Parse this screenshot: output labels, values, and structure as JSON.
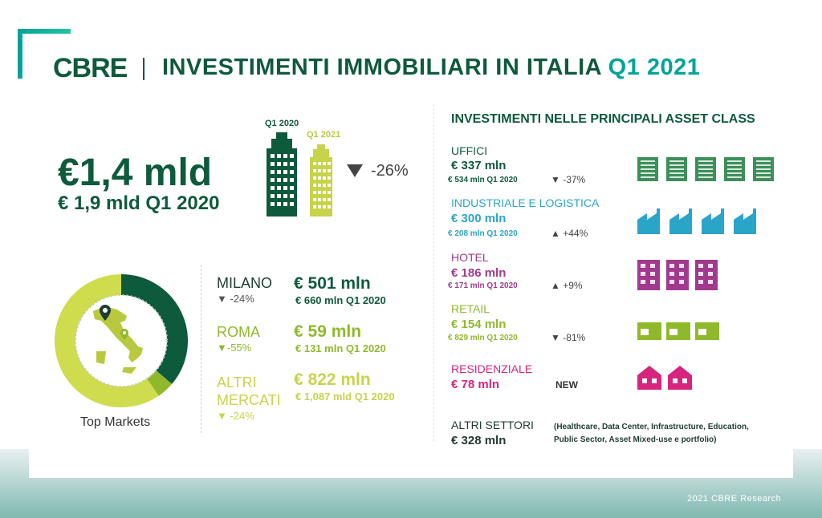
{
  "brand": {
    "logo_text": "CBRE",
    "accent": "#00a39a",
    "dark_green": "#0e5a3c",
    "lime": "#b9c93f"
  },
  "title": {
    "main": "INVESTIMENTI IMMOBILIARI IN ITALIA",
    "highlight": "Q1 2021"
  },
  "headline": {
    "value": "€1,4 mld",
    "previous": "€ 1,9 mld Q1 2020",
    "change": "-26%"
  },
  "buildings": {
    "q1_2020_label": "Q1 2020",
    "q1_2021_label": "Q1 2021"
  },
  "markets": {
    "caption": "Top Markets",
    "rows": [
      {
        "name": "MILANO",
        "change": "▼ -24%",
        "value": "€ 501 mln",
        "previous": "€ 660 mln Q1 2020"
      },
      {
        "name": "ROMA",
        "change": "▼-55%",
        "value": "€ 59 mln",
        "previous": "€ 131 mln Q1 2020"
      },
      {
        "name_line1": "ALTRI",
        "name_line2": "MERCATI",
        "change": "▼ -24%",
        "value": "€ 822 mln",
        "previous": "€ 1,087 mld Q1 2020"
      }
    ]
  },
  "asset_classes": {
    "title": "INVESTIMENTI NELLE PRINCIPALI ASSET CLASS",
    "items": [
      {
        "name": "UFFICI",
        "value": "€ 337 mln",
        "previous": "€  534 mln Q1 2020",
        "change": "▼ -37%",
        "color": "#0e5a3c",
        "icon": "office-building-icon"
      },
      {
        "name": "INDUSTRIALE E LOGISTICA",
        "value": "€ 300 mln",
        "previous": "€  208 mln Q1 2020",
        "change": "▲ +44%",
        "color": "#2aa5c9",
        "icon": "factory-icon"
      },
      {
        "name": "HOTEL",
        "value": "€ 186 mln",
        "previous": "€  171 mln Q1 2020",
        "change": "▲ +9%",
        "color": "#a13a8e",
        "icon": "hotel-icon"
      },
      {
        "name": "RETAIL",
        "value": "€ 154 mln",
        "previous": "€  829 mln Q1 2020",
        "change": "▼ -81%",
        "color": "#8fb92b",
        "icon": "shop-icon"
      },
      {
        "name": "RESIDENZIALE",
        "value": "€ 78 mln",
        "badge": "NEW",
        "color": "#d7247f",
        "icon": "house-icon"
      },
      {
        "name": "ALTRI SETTORI",
        "value": "€ 328 mln",
        "note_line1": "(Healthcare, Data Center, Infrastructure, Education,",
        "note_line2": "Public Sector, Asset Mixed-use e portfolio)"
      }
    ]
  },
  "footer": {
    "credit": "2021 CBRE Research"
  },
  "chart_data": {
    "type": "pie",
    "title": "Top Markets",
    "categories": [
      "MILANO",
      "ROMA",
      "ALTRI MERCATI"
    ],
    "values": [
      501,
      59,
      822
    ],
    "units": "€ mln",
    "colors": [
      "#0e5a3c",
      "#8fb92b",
      "#cfdc4e"
    ]
  }
}
